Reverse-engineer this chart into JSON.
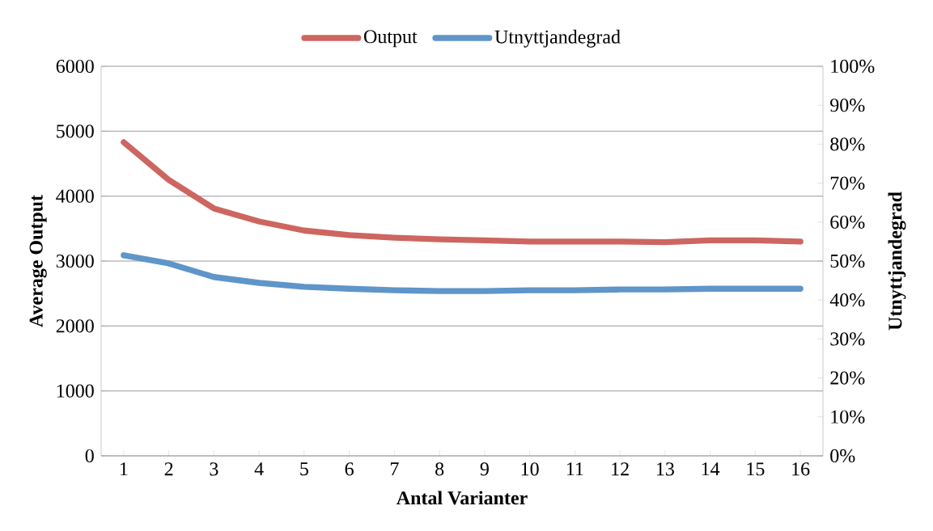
{
  "chart_data": {
    "type": "line",
    "xlabel": "Antal Varianter",
    "ylabel": "Average Output",
    "y2label": "Utnyttjandegrad",
    "categories": [
      "1",
      "2",
      "3",
      "4",
      "5",
      "6",
      "7",
      "8",
      "9",
      "10",
      "11",
      "12",
      "13",
      "14",
      "15",
      "16"
    ],
    "series": [
      {
        "name": "Output",
        "color": "#cd6660",
        "values": [
          4830,
          4250,
          3810,
          3610,
          3470,
          3400,
          3360,
          3335,
          3320,
          3300,
          3300,
          3300,
          3290,
          3320,
          3320,
          3300
        ]
      },
      {
        "name": "Utnyttjandegrad",
        "color": "#5f95c9",
        "axis": "y2",
        "values": [
          51.5,
          49.4,
          45.9,
          44.4,
          43.4,
          42.9,
          42.5,
          42.3,
          42.3,
          42.5,
          42.5,
          42.7,
          42.7,
          42.9,
          42.9,
          42.9
        ]
      }
    ],
    "ylim": [
      0,
      6000
    ],
    "yticks": [
      0,
      1000,
      2000,
      3000,
      4000,
      5000,
      6000
    ],
    "y2lim": [
      0,
      100
    ],
    "y2ticks": [
      {
        "value": 0,
        "label": "0%"
      },
      {
        "value": 10,
        "label": "10%"
      },
      {
        "value": 20,
        "label": "20%"
      },
      {
        "value": 30,
        "label": "30%"
      },
      {
        "value": 40,
        "label": "40%"
      },
      {
        "value": 50,
        "label": "50%"
      },
      {
        "value": 60,
        "label": "60%"
      },
      {
        "value": 70,
        "label": "70%"
      },
      {
        "value": 80,
        "label": "80%"
      },
      {
        "value": 90,
        "label": "90%"
      },
      {
        "value": 100,
        "label": "100%"
      }
    ],
    "grid": "y",
    "legend": "top",
    "marker": "none",
    "line_style": "solid"
  }
}
